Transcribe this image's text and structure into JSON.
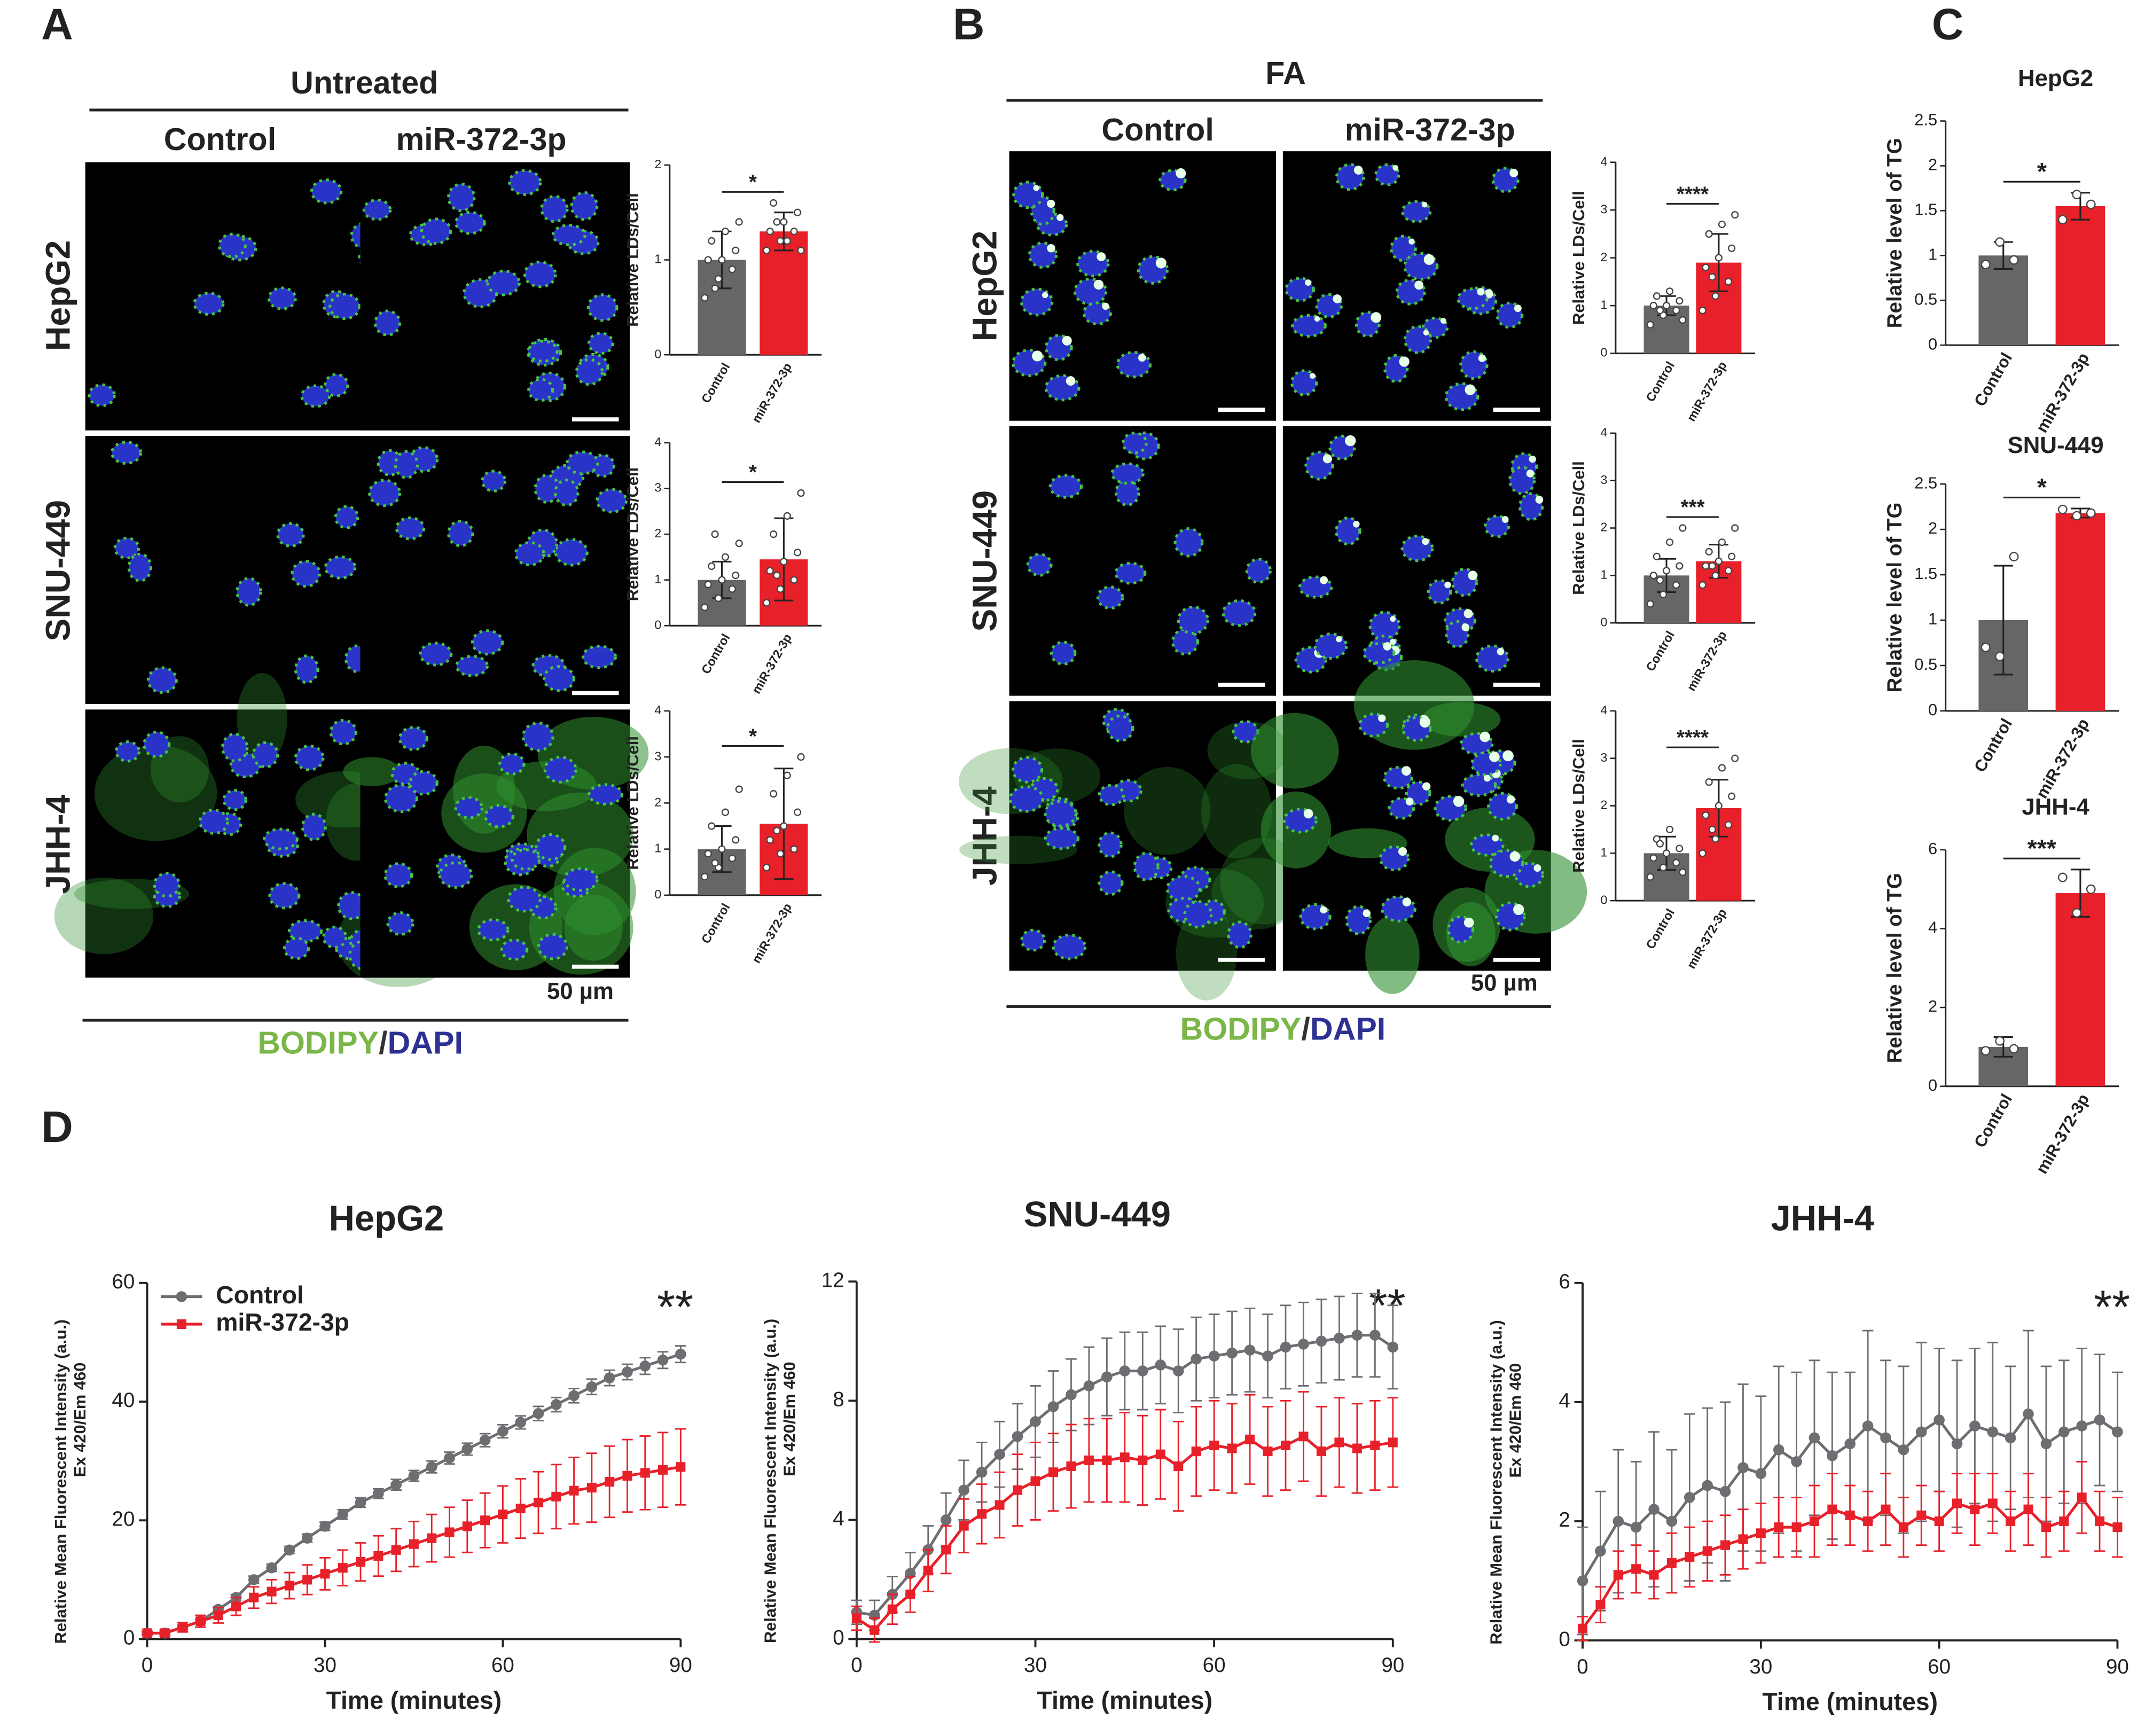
{
  "panels": {
    "A": {
      "label": "A",
      "condition": "Untreated",
      "columns": [
        "Control",
        "miR-372-3p"
      ],
      "rows": [
        "HepG2",
        "SNU-449",
        "JHH-4"
      ],
      "scale_bar": "50 µm",
      "stain": [
        "BODIPY",
        "/",
        "DAPI"
      ]
    },
    "B": {
      "label": "B",
      "condition": "FA",
      "columns": [
        "Control",
        "miR-372-3p"
      ],
      "rows": [
        "HepG2",
        "SNU-449",
        "JHH-4"
      ],
      "scale_bar": "50 µm",
      "stain": [
        "BODIPY",
        "/",
        "DAPI"
      ]
    },
    "C": {
      "label": "C"
    },
    "D": {
      "label": "D"
    }
  },
  "chart_data": [
    {
      "type": "bar",
      "y_label": "Relative LDs/Cell",
      "categories": [
        "Control",
        "miR-372-3p"
      ],
      "values": [
        1.0,
        1.3
      ],
      "errors": [
        0.3,
        0.2
      ],
      "points": [
        [
          0.6,
          0.8,
          0.9,
          1.0,
          1.0,
          1.1,
          1.2,
          1.3,
          1.4,
          0.7
        ],
        [
          1.1,
          1.2,
          1.3,
          1.3,
          1.4,
          1.5,
          1.6,
          1.2,
          1.1,
          1.4
        ]
      ],
      "colors": [
        "#666666",
        "#e8202a"
      ],
      "ylim": [
        0,
        2
      ],
      "yticks": [
        0,
        1,
        2
      ],
      "significance": "*"
    },
    {
      "type": "bar",
      "y_label": "Relative LDs/Cell",
      "categories": [
        "Control",
        "miR-372-3p"
      ],
      "values": [
        1.0,
        1.45
      ],
      "errors": [
        0.4,
        0.9
      ],
      "points": [
        [
          0.4,
          0.6,
          0.8,
          0.9,
          1.0,
          1.1,
          1.3,
          1.5,
          1.8,
          2.0
        ],
        [
          0.5,
          0.8,
          1.0,
          1.2,
          1.4,
          1.6,
          2.0,
          2.4,
          2.9,
          1.1
        ]
      ],
      "colors": [
        "#666666",
        "#e8202a"
      ],
      "ylim": [
        0,
        4
      ],
      "yticks": [
        0,
        1,
        2,
        3,
        4
      ],
      "significance": "*"
    },
    {
      "type": "bar",
      "y_label": "Relative LDs/Cell",
      "categories": [
        "Control",
        "miR-372-3p"
      ],
      "values": [
        1.0,
        1.55
      ],
      "errors": [
        0.5,
        1.2
      ],
      "points": [
        [
          0.4,
          0.6,
          0.8,
          0.9,
          1.0,
          1.2,
          1.5,
          1.8,
          2.3,
          0.7
        ],
        [
          0.6,
          0.9,
          1.0,
          1.2,
          1.5,
          1.8,
          2.2,
          2.6,
          3.0,
          1.4
        ]
      ],
      "colors": [
        "#666666",
        "#e8202a"
      ],
      "ylim": [
        0,
        4
      ],
      "yticks": [
        0,
        1,
        2,
        3,
        4
      ],
      "significance": "*"
    },
    {
      "type": "bar",
      "y_label": "Relative LDs/Cell",
      "categories": [
        "Control",
        "miR-372-3p"
      ],
      "values": [
        1.0,
        1.9
      ],
      "errors": [
        0.2,
        0.6
      ],
      "points": [
        [
          0.6,
          0.8,
          0.9,
          1.0,
          1.0,
          1.1,
          1.2,
          1.3,
          0.7,
          0.9
        ],
        [
          0.9,
          1.2,
          1.5,
          1.8,
          2.0,
          2.2,
          2.5,
          2.7,
          2.9,
          1.6
        ]
      ],
      "colors": [
        "#666666",
        "#e8202a"
      ],
      "ylim": [
        0,
        4
      ],
      "yticks": [
        0,
        1,
        2,
        3,
        4
      ],
      "significance": "****"
    },
    {
      "type": "bar",
      "y_label": "Relative LDs/Cell",
      "categories": [
        "Control",
        "miR-372-3p"
      ],
      "values": [
        1.0,
        1.3
      ],
      "errors": [
        0.35,
        0.35
      ],
      "points": [
        [
          0.4,
          0.6,
          0.8,
          1.0,
          1.1,
          1.2,
          1.4,
          1.7,
          2.0,
          0.9
        ],
        [
          0.8,
          1.0,
          1.1,
          1.2,
          1.3,
          1.4,
          1.5,
          1.7,
          2.0,
          1.2
        ]
      ],
      "colors": [
        "#666666",
        "#e8202a"
      ],
      "ylim": [
        0,
        4
      ],
      "yticks": [
        0,
        1,
        2,
        3,
        4
      ],
      "significance": "***"
    },
    {
      "type": "bar",
      "y_label": "Relative LDs/Cell",
      "categories": [
        "Control",
        "miR-372-3p"
      ],
      "values": [
        1.0,
        1.95
      ],
      "errors": [
        0.35,
        0.6
      ],
      "points": [
        [
          0.5,
          0.7,
          0.8,
          0.9,
          1.0,
          1.1,
          1.3,
          1.5,
          0.6,
          1.2
        ],
        [
          1.0,
          1.3,
          1.6,
          1.8,
          2.0,
          2.2,
          2.5,
          2.8,
          3.0,
          1.5
        ]
      ],
      "colors": [
        "#666666",
        "#e8202a"
      ],
      "ylim": [
        0,
        4
      ],
      "yticks": [
        0,
        1,
        2,
        3,
        4
      ],
      "significance": "****"
    },
    {
      "type": "bar",
      "title": "HepG2",
      "y_label": "Relative level of TG",
      "categories": [
        "Control",
        "miR-372-3p"
      ],
      "values": [
        1.0,
        1.55
      ],
      "errors": [
        0.15,
        0.15
      ],
      "points": [
        [
          0.9,
          1.15,
          0.95
        ],
        [
          1.4,
          1.68,
          1.57
        ]
      ],
      "colors": [
        "#666666",
        "#e8202a"
      ],
      "ylim": [
        0,
        2.5
      ],
      "yticks": [
        0,
        0.5,
        1,
        1.5,
        2,
        2.5
      ],
      "significance": "*"
    },
    {
      "type": "bar",
      "title": "SNU-449",
      "y_label": "Relative level of TG",
      "categories": [
        "Control",
        "miR-372-3p"
      ],
      "values": [
        1.0,
        2.18
      ],
      "errors": [
        0.6,
        0.05
      ],
      "points": [
        [
          0.7,
          0.6,
          1.7
        ],
        [
          2.22,
          2.15,
          2.18
        ]
      ],
      "colors": [
        "#666666",
        "#e8202a"
      ],
      "ylim": [
        0,
        2.5
      ],
      "yticks": [
        0,
        0.5,
        1,
        1.5,
        2,
        2.5
      ],
      "significance": "*"
    },
    {
      "type": "bar",
      "title": "JHH-4",
      "y_label": "Relative level of TG",
      "categories": [
        "Control",
        "miR-372-3p"
      ],
      "values": [
        1.0,
        4.9
      ],
      "errors": [
        0.25,
        0.6
      ],
      "points": [
        [
          0.9,
          1.15,
          0.95
        ],
        [
          5.3,
          4.4,
          5.0
        ]
      ],
      "colors": [
        "#666666",
        "#e8202a"
      ],
      "ylim": [
        0,
        6
      ],
      "yticks": [
        0,
        2,
        4,
        6
      ],
      "significance": "***"
    },
    {
      "type": "line",
      "title": "HepG2",
      "x_label": "Time (minutes)",
      "y_label": "Relative Mean Fluorescent Intensity (a.u.)",
      "y_label_2": "Ex 420/Em 460",
      "annotation": "**",
      "legend": "top-left",
      "x": [
        0,
        3,
        6,
        9,
        12,
        15,
        18,
        21,
        24,
        27,
        30,
        33,
        36,
        39,
        42,
        45,
        48,
        51,
        54,
        57,
        60,
        63,
        66,
        69,
        72,
        75,
        78,
        81,
        84,
        87,
        90
      ],
      "series": [
        {
          "name": "Control",
          "color": "#6d6e71",
          "marker": "circle",
          "values": [
            1,
            1,
            2,
            3,
            5,
            7,
            10,
            12,
            15,
            17,
            19,
            21,
            23,
            24.5,
            26,
            27.5,
            29,
            30.5,
            32,
            33.5,
            35,
            36.5,
            38,
            39.5,
            41,
            42.5,
            44,
            45,
            46,
            47,
            48
          ],
          "errors": [
            0.3,
            0.3,
            0.4,
            0.4,
            0.5,
            0.5,
            0.6,
            0.6,
            0.6,
            0.7,
            0.7,
            0.8,
            0.8,
            0.8,
            0.9,
            0.9,
            1.0,
            1.0,
            1.0,
            1.1,
            1.1,
            1.1,
            1.2,
            1.2,
            1.2,
            1.3,
            1.3,
            1.3,
            1.4,
            1.4,
            1.4
          ]
        },
        {
          "name": "miR-372-3p",
          "color": "#e8202a",
          "marker": "square",
          "values": [
            1,
            1,
            2,
            3,
            4,
            5.5,
            7,
            8,
            9,
            10,
            11,
            12,
            13,
            14,
            15,
            16,
            17,
            18,
            19,
            20,
            21,
            22,
            23,
            24,
            25,
            25.5,
            26.5,
            27.5,
            28,
            28.5,
            29
          ],
          "errors": [
            0.3,
            0.5,
            0.8,
            1.0,
            1.3,
            1.5,
            1.8,
            2.0,
            2.2,
            2.5,
            2.7,
            3.0,
            3.2,
            3.4,
            3.6,
            3.8,
            4.0,
            4.2,
            4.4,
            4.6,
            4.8,
            5.0,
            5.2,
            5.4,
            5.6,
            5.8,
            6.0,
            6.1,
            6.2,
            6.3,
            6.4
          ]
        }
      ],
      "xlim": [
        0,
        90
      ],
      "ylim": [
        0,
        60
      ],
      "xticks": [
        0,
        30,
        60,
        90
      ],
      "yticks": [
        0,
        20,
        40,
        60
      ]
    },
    {
      "type": "line",
      "title": "SNU-449",
      "x_label": "Time (minutes)",
      "y_label": "Relative Mean Fluorescent Intensity (a.u.)",
      "y_label_2": "Ex 420/Em 460",
      "annotation": "**",
      "x": [
        0,
        3,
        6,
        9,
        12,
        15,
        18,
        21,
        24,
        27,
        30,
        33,
        36,
        39,
        42,
        45,
        48,
        51,
        54,
        57,
        60,
        63,
        66,
        69,
        72,
        75,
        78,
        81,
        84,
        87,
        90
      ],
      "series": [
        {
          "color": "#6d6e71",
          "marker": "circle",
          "values": [
            0.9,
            0.8,
            1.5,
            2.2,
            3.0,
            4.0,
            5.0,
            5.6,
            6.2,
            6.8,
            7.3,
            7.8,
            8.2,
            8.5,
            8.8,
            9.0,
            9.0,
            9.2,
            9.0,
            9.4,
            9.5,
            9.6,
            9.7,
            9.5,
            9.8,
            9.9,
            10.0,
            10.1,
            10.2,
            10.2,
            9.8
          ],
          "errors": [
            0.4,
            0.5,
            0.6,
            0.7,
            0.8,
            0.9,
            1.0,
            1.0,
            1.1,
            1.1,
            1.2,
            1.2,
            1.2,
            1.3,
            1.3,
            1.3,
            1.3,
            1.3,
            1.4,
            1.4,
            1.4,
            1.4,
            1.4,
            1.4,
            1.4,
            1.4,
            1.4,
            1.4,
            1.4,
            1.4,
            1.4
          ]
        },
        {
          "color": "#e8202a",
          "marker": "square",
          "values": [
            0.7,
            0.3,
            1.0,
            1.5,
            2.3,
            3.0,
            3.8,
            4.2,
            4.5,
            5.0,
            5.3,
            5.6,
            5.8,
            6.0,
            6.0,
            6.1,
            6.0,
            6.2,
            5.8,
            6.3,
            6.5,
            6.4,
            6.7,
            6.3,
            6.5,
            6.8,
            6.3,
            6.6,
            6.4,
            6.5,
            6.6
          ],
          "errors": [
            0.4,
            0.4,
            0.5,
            0.6,
            0.7,
            0.8,
            0.9,
            1.0,
            1.1,
            1.2,
            1.3,
            1.3,
            1.4,
            1.4,
            1.4,
            1.5,
            1.5,
            1.5,
            1.5,
            1.5,
            1.5,
            1.5,
            1.5,
            1.5,
            1.5,
            1.5,
            1.5,
            1.5,
            1.5,
            1.5,
            1.5
          ]
        }
      ],
      "xlim": [
        0,
        90
      ],
      "ylim": [
        0,
        12
      ],
      "xticks": [
        0,
        30,
        60,
        90
      ],
      "yticks": [
        0,
        4,
        8,
        12
      ]
    },
    {
      "type": "line",
      "title": "JHH-4",
      "x_label": "Time (minutes)",
      "y_label": "Relative Mean Fluorescent Intensity (a.u.)",
      "y_label_2": "Ex 420/Em 460",
      "annotation": "**",
      "x": [
        0,
        3,
        6,
        9,
        12,
        15,
        18,
        21,
        24,
        27,
        30,
        33,
        36,
        39,
        42,
        45,
        48,
        51,
        54,
        57,
        60,
        63,
        66,
        69,
        72,
        75,
        78,
        81,
        84,
        87,
        90
      ],
      "series": [
        {
          "color": "#6d6e71",
          "marker": "circle",
          "values": [
            1.0,
            1.5,
            2.0,
            1.9,
            2.2,
            2.0,
            2.4,
            2.6,
            2.5,
            2.9,
            2.8,
            3.2,
            3.0,
            3.4,
            3.1,
            3.3,
            3.6,
            3.4,
            3.2,
            3.5,
            3.7,
            3.3,
            3.6,
            3.5,
            3.4,
            3.8,
            3.3,
            3.5,
            3.6,
            3.7,
            3.5
          ],
          "errors": [
            0.9,
            1.0,
            1.2,
            1.1,
            1.3,
            1.2,
            1.4,
            1.3,
            1.5,
            1.4,
            1.3,
            1.4,
            1.5,
            1.3,
            1.4,
            1.2,
            1.6,
            1.3,
            1.4,
            1.5,
            1.2,
            1.4,
            1.3,
            1.5,
            1.2,
            1.4,
            1.3,
            1.2,
            1.3,
            1.1,
            1.0
          ]
        },
        {
          "color": "#e8202a",
          "marker": "square",
          "values": [
            0.2,
            0.6,
            1.1,
            1.2,
            1.1,
            1.3,
            1.4,
            1.5,
            1.6,
            1.7,
            1.8,
            1.9,
            1.9,
            2.0,
            2.2,
            2.1,
            2.0,
            2.2,
            1.9,
            2.1,
            2.0,
            2.3,
            2.2,
            2.3,
            2.0,
            2.2,
            1.9,
            2.0,
            2.4,
            2.0,
            1.9
          ],
          "errors": [
            0.2,
            0.3,
            0.4,
            0.4,
            0.4,
            0.5,
            0.5,
            0.5,
            0.5,
            0.5,
            0.5,
            0.5,
            0.5,
            0.6,
            0.6,
            0.5,
            0.5,
            0.6,
            0.5,
            0.5,
            0.5,
            0.5,
            0.6,
            0.5,
            0.5,
            0.6,
            0.5,
            0.5,
            0.6,
            0.5,
            0.5
          ]
        }
      ],
      "xlim": [
        0,
        90
      ],
      "ylim": [
        0,
        6
      ],
      "xticks": [
        0,
        30,
        60,
        90
      ],
      "yticks": [
        0,
        2,
        4,
        6
      ]
    }
  ]
}
